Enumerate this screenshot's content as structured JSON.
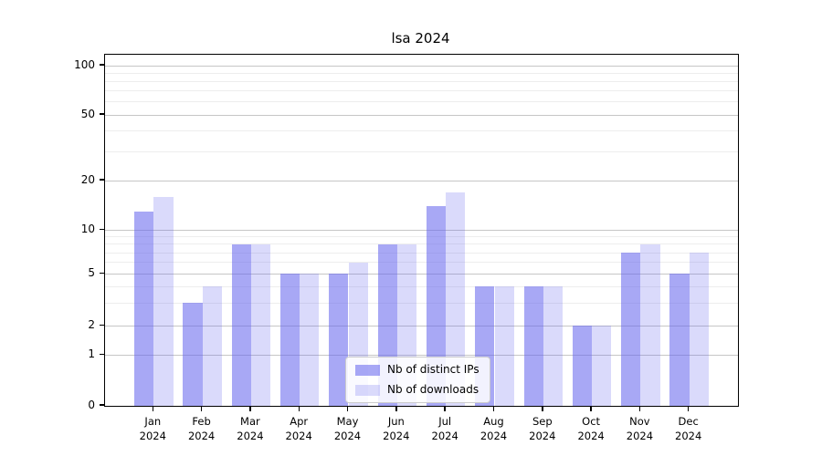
{
  "title": "lsa 2024",
  "chart_data": {
    "type": "bar",
    "categories": [
      "Jan",
      "Feb",
      "Mar",
      "Apr",
      "May",
      "Jun",
      "Jul",
      "Aug",
      "Sep",
      "Oct",
      "Nov",
      "Dec"
    ],
    "x_second_line": "2024",
    "series": [
      {
        "name": "Nb of distinct IPs",
        "color": "rgba(102,102,238,0.57)",
        "values": [
          13,
          3,
          8,
          5,
          5,
          8,
          14,
          4,
          4,
          2,
          7,
          5
        ]
      },
      {
        "name": "Nb of downloads",
        "color": "rgba(102,102,238,0.24)",
        "values": [
          16,
          4,
          8,
          5,
          6,
          8,
          17,
          4,
          4,
          2,
          8,
          7
        ]
      }
    ],
    "yaxis": {
      "scale": "quasi-log",
      "ticks": [
        0,
        1,
        2,
        5,
        10,
        20,
        50,
        100
      ],
      "minor_gridlines": [
        3,
        4,
        6,
        7,
        8,
        9,
        30,
        40,
        60,
        70,
        80,
        90
      ],
      "ylim": [
        0,
        110
      ]
    },
    "legend_position": "lower center",
    "grid": true,
    "colors": {
      "major_grid": "#c6c6c6",
      "minor_grid": "#ededed",
      "axis": "#000000",
      "background": "#ffffff"
    }
  }
}
